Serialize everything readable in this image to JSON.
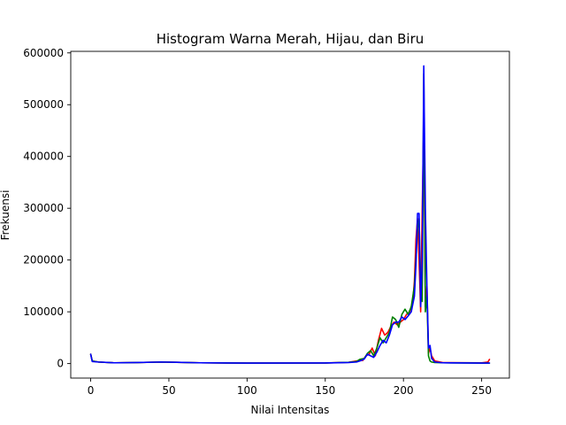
{
  "chart_data": {
    "type": "line",
    "title": "Histogram Warna Merah, Hijau, dan Biru",
    "xlabel": "Nilai Intensitas",
    "ylabel": "Frekuensi",
    "xlim": [
      -12.75,
      267.75
    ],
    "ylim": [
      -28000,
      603000
    ],
    "xticks": [
      0,
      50,
      100,
      150,
      200,
      250
    ],
    "yticks": [
      0,
      100000,
      200000,
      300000,
      400000,
      500000,
      600000
    ],
    "xtick_labels": [
      "0",
      "50",
      "100",
      "150",
      "200",
      "250"
    ],
    "ytick_labels": [
      "0",
      "100000",
      "200000",
      "300000",
      "400000",
      "500000",
      "600000"
    ],
    "grid": false,
    "legend": "none",
    "series": [
      {
        "color": "#ff0000",
        "points": [
          [
            0,
            18000
          ],
          [
            1,
            5000
          ],
          [
            5,
            3000
          ],
          [
            15,
            1500
          ],
          [
            30,
            2000
          ],
          [
            45,
            3000
          ],
          [
            55,
            2500
          ],
          [
            70,
            1500
          ],
          [
            100,
            1000
          ],
          [
            150,
            1200
          ],
          [
            165,
            2500
          ],
          [
            170,
            5000
          ],
          [
            174,
            6000
          ],
          [
            176,
            15000
          ],
          [
            178,
            18000
          ],
          [
            180,
            30000
          ],
          [
            182,
            15000
          ],
          [
            184,
            45000
          ],
          [
            186,
            68000
          ],
          [
            188,
            55000
          ],
          [
            190,
            60000
          ],
          [
            192,
            72000
          ],
          [
            194,
            80000
          ],
          [
            196,
            75000
          ],
          [
            198,
            80000
          ],
          [
            200,
            85000
          ],
          [
            202,
            95000
          ],
          [
            204,
            100000
          ],
          [
            206,
            120000
          ],
          [
            207,
            160000
          ],
          [
            208,
            240000
          ],
          [
            209,
            280000
          ],
          [
            210,
            200000
          ],
          [
            211,
            100000
          ],
          [
            212,
            300000
          ],
          [
            213,
            470000
          ],
          [
            214,
            110000
          ],
          [
            215,
            150000
          ],
          [
            216,
            20000
          ],
          [
            217,
            30000
          ],
          [
            218,
            15000
          ],
          [
            220,
            5000
          ],
          [
            225,
            2000
          ],
          [
            250,
            1500
          ],
          [
            254,
            3000
          ],
          [
            255,
            8000
          ]
        ]
      },
      {
        "color": "#008000",
        "points": [
          [
            0,
            18000
          ],
          [
            1,
            5000
          ],
          [
            5,
            3000
          ],
          [
            15,
            1500
          ],
          [
            30,
            2000
          ],
          [
            45,
            3000
          ],
          [
            55,
            2500
          ],
          [
            70,
            1500
          ],
          [
            100,
            1000
          ],
          [
            150,
            1200
          ],
          [
            165,
            2500
          ],
          [
            170,
            4000
          ],
          [
            172,
            8000
          ],
          [
            175,
            10000
          ],
          [
            177,
            20000
          ],
          [
            179,
            25000
          ],
          [
            181,
            15000
          ],
          [
            183,
            30000
          ],
          [
            185,
            50000
          ],
          [
            187,
            40000
          ],
          [
            189,
            50000
          ],
          [
            191,
            60000
          ],
          [
            193,
            90000
          ],
          [
            195,
            85000
          ],
          [
            197,
            70000
          ],
          [
            199,
            95000
          ],
          [
            201,
            105000
          ],
          [
            203,
            95000
          ],
          [
            205,
            110000
          ],
          [
            207,
            150000
          ],
          [
            208,
            200000
          ],
          [
            209,
            260000
          ],
          [
            210,
            280000
          ],
          [
            211,
            150000
          ],
          [
            212,
            120000
          ],
          [
            213,
            560000
          ],
          [
            214,
            100000
          ],
          [
            215,
            130000
          ],
          [
            216,
            15000
          ],
          [
            217,
            5000
          ],
          [
            218,
            3000
          ],
          [
            220,
            2000
          ],
          [
            225,
            1500
          ],
          [
            250,
            1000
          ],
          [
            255,
            1000
          ]
        ]
      },
      {
        "color": "#0000ff",
        "points": [
          [
            0,
            18000
          ],
          [
            1,
            4000
          ],
          [
            5,
            3000
          ],
          [
            15,
            1500
          ],
          [
            30,
            2000
          ],
          [
            45,
            3000
          ],
          [
            55,
            2500
          ],
          [
            70,
            1500
          ],
          [
            100,
            1000
          ],
          [
            150,
            1200
          ],
          [
            165,
            2000
          ],
          [
            170,
            3000
          ],
          [
            173,
            6000
          ],
          [
            175,
            9000
          ],
          [
            177,
            18000
          ],
          [
            179,
            15000
          ],
          [
            181,
            12000
          ],
          [
            183,
            22000
          ],
          [
            185,
            35000
          ],
          [
            187,
            45000
          ],
          [
            189,
            40000
          ],
          [
            191,
            55000
          ],
          [
            193,
            75000
          ],
          [
            195,
            80000
          ],
          [
            197,
            80000
          ],
          [
            199,
            90000
          ],
          [
            201,
            85000
          ],
          [
            203,
            92000
          ],
          [
            205,
            100000
          ],
          [
            207,
            130000
          ],
          [
            208,
            190000
          ],
          [
            209,
            290000
          ],
          [
            210,
            290000
          ],
          [
            211,
            110000
          ],
          [
            212,
            200000
          ],
          [
            213,
            575000
          ],
          [
            214,
            300000
          ],
          [
            215,
            150000
          ],
          [
            216,
            30000
          ],
          [
            217,
            35000
          ],
          [
            218,
            10000
          ],
          [
            220,
            3000
          ],
          [
            225,
            1500
          ],
          [
            250,
            1000
          ],
          [
            255,
            1000
          ]
        ]
      }
    ]
  }
}
